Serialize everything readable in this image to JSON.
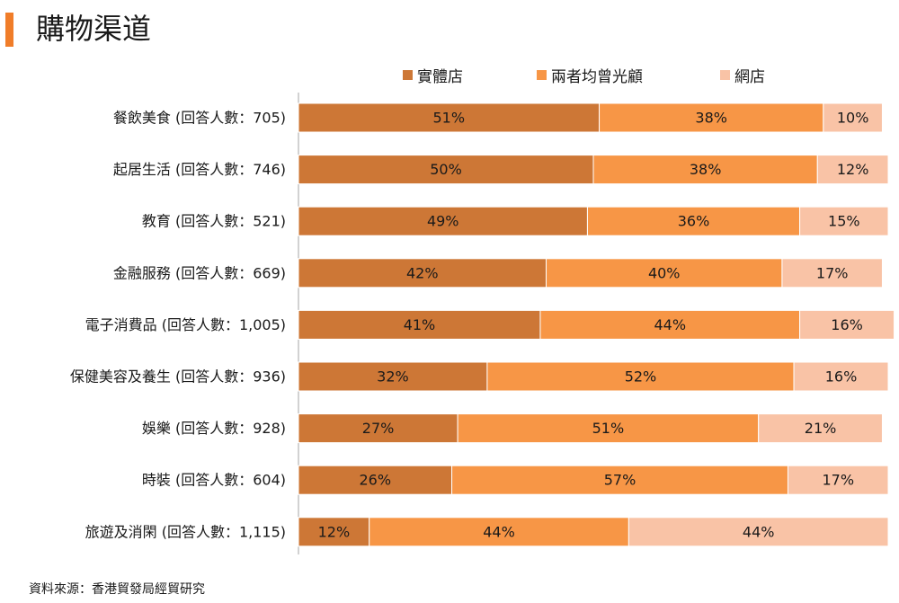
{
  "title": "購物渠道",
  "source": "資料來源：香港貿發局經貿研究",
  "colors": {
    "accent": "#f07d29",
    "store": "#cd7736",
    "both": "#f79646",
    "online": "#f9c3a6",
    "axis": "#a6a6a6"
  },
  "chart_data": {
    "type": "bar",
    "orientation": "horizontal",
    "stacked": true,
    "percent": true,
    "legend_position": "top",
    "grid": false,
    "xlim": [
      0,
      100
    ],
    "categories": [
      "餐飲美食 (回答人數：705)",
      "起居生活 (回答人數：746)",
      "教育 (回答人數：521)",
      "金融服務 (回答人數：669)",
      "電子消費品 (回答人數：1,005)",
      "保健美容及養生 (回答人數：936)",
      "娛樂 (回答人數：928)",
      "時裝 (回答人數：604)",
      "旅遊及消閑 (回答人數：1,115)"
    ],
    "series": [
      {
        "name": "實體店",
        "color": "#cd7736",
        "values": [
          51,
          50,
          49,
          42,
          41,
          32,
          27,
          26,
          12
        ]
      },
      {
        "name": "兩者均曾光顧",
        "color": "#f79646",
        "values": [
          38,
          38,
          36,
          40,
          44,
          52,
          51,
          57,
          44
        ]
      },
      {
        "name": "網店",
        "color": "#f9c3a6",
        "values": [
          10,
          12,
          15,
          17,
          16,
          16,
          21,
          17,
          44
        ]
      }
    ]
  }
}
